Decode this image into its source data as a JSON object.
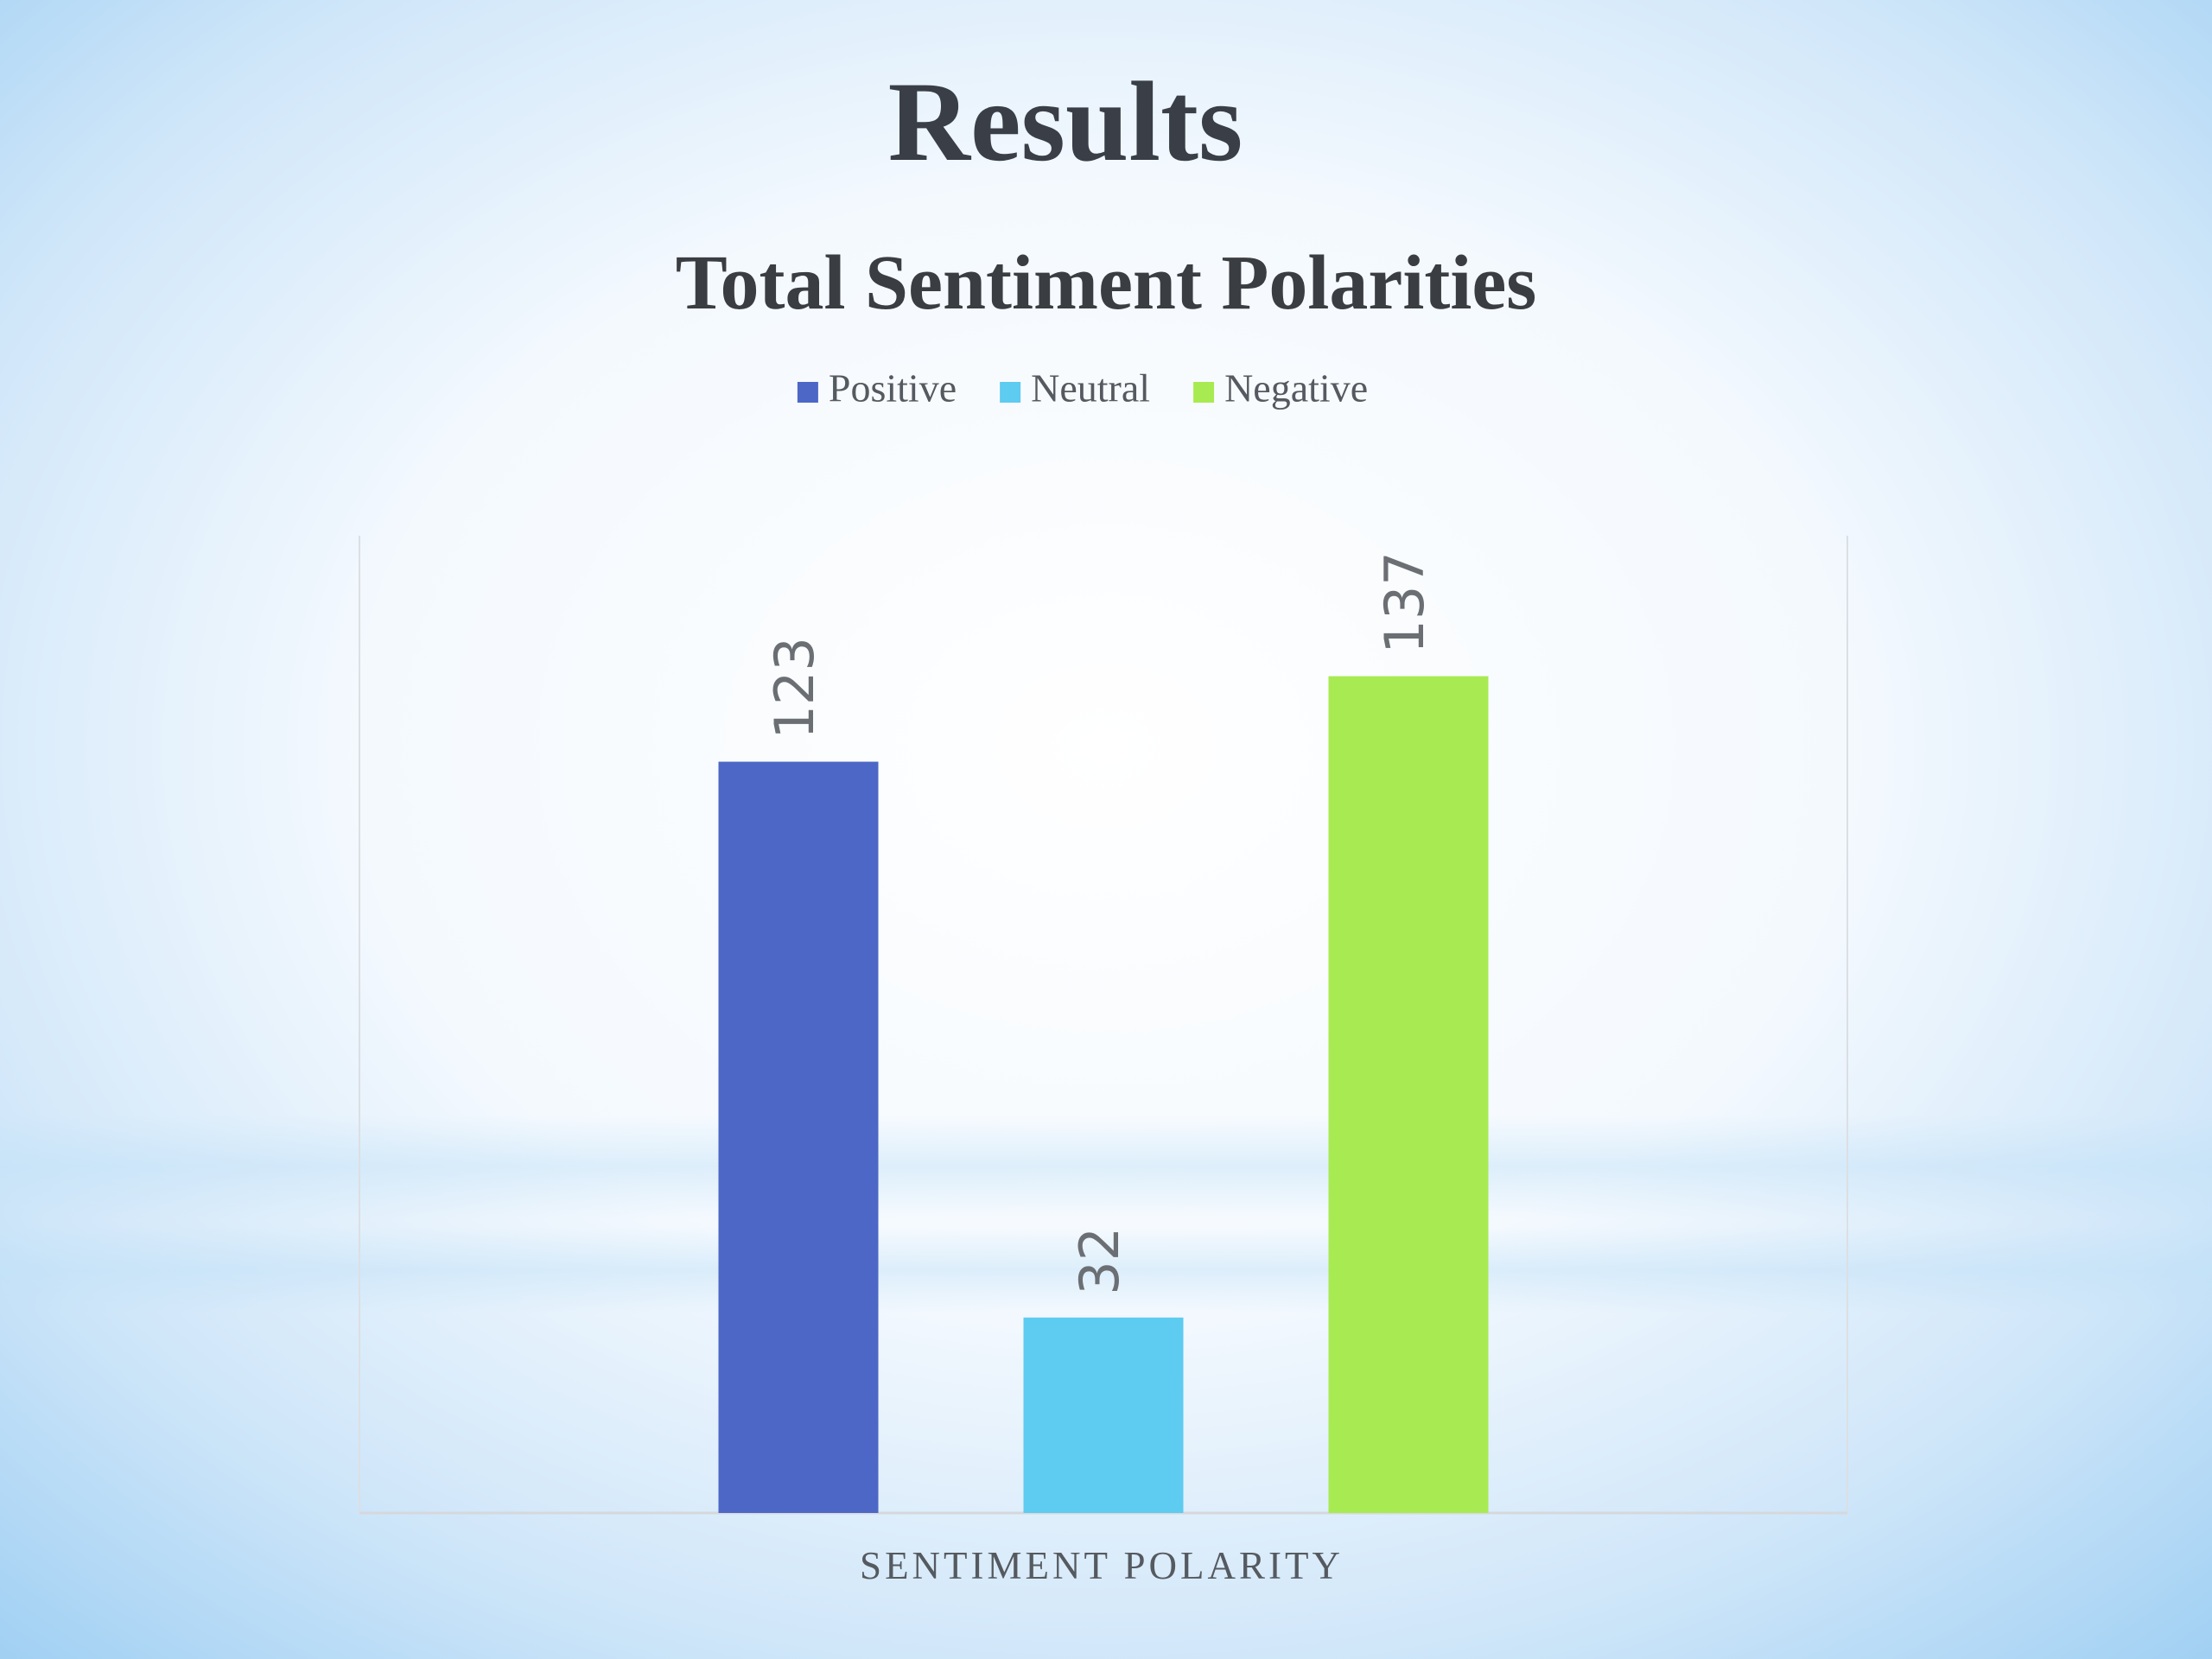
{
  "title": "Results",
  "chart_data": {
    "type": "bar",
    "title": "Total Sentiment Polarities",
    "x_label": "SENTIMENT POLARITY",
    "categories": [
      null
    ],
    "series": [
      {
        "name": "Positive",
        "color": "#4d67c6",
        "values": [
          123
        ]
      },
      {
        "name": "Neutral",
        "color": "#5ecbf0",
        "values": [
          32
        ]
      },
      {
        "name": "Negative",
        "color": "#a8ea52",
        "values": [
          137
        ]
      }
    ],
    "ylim": [
      0,
      160
    ],
    "legend": "top"
  }
}
